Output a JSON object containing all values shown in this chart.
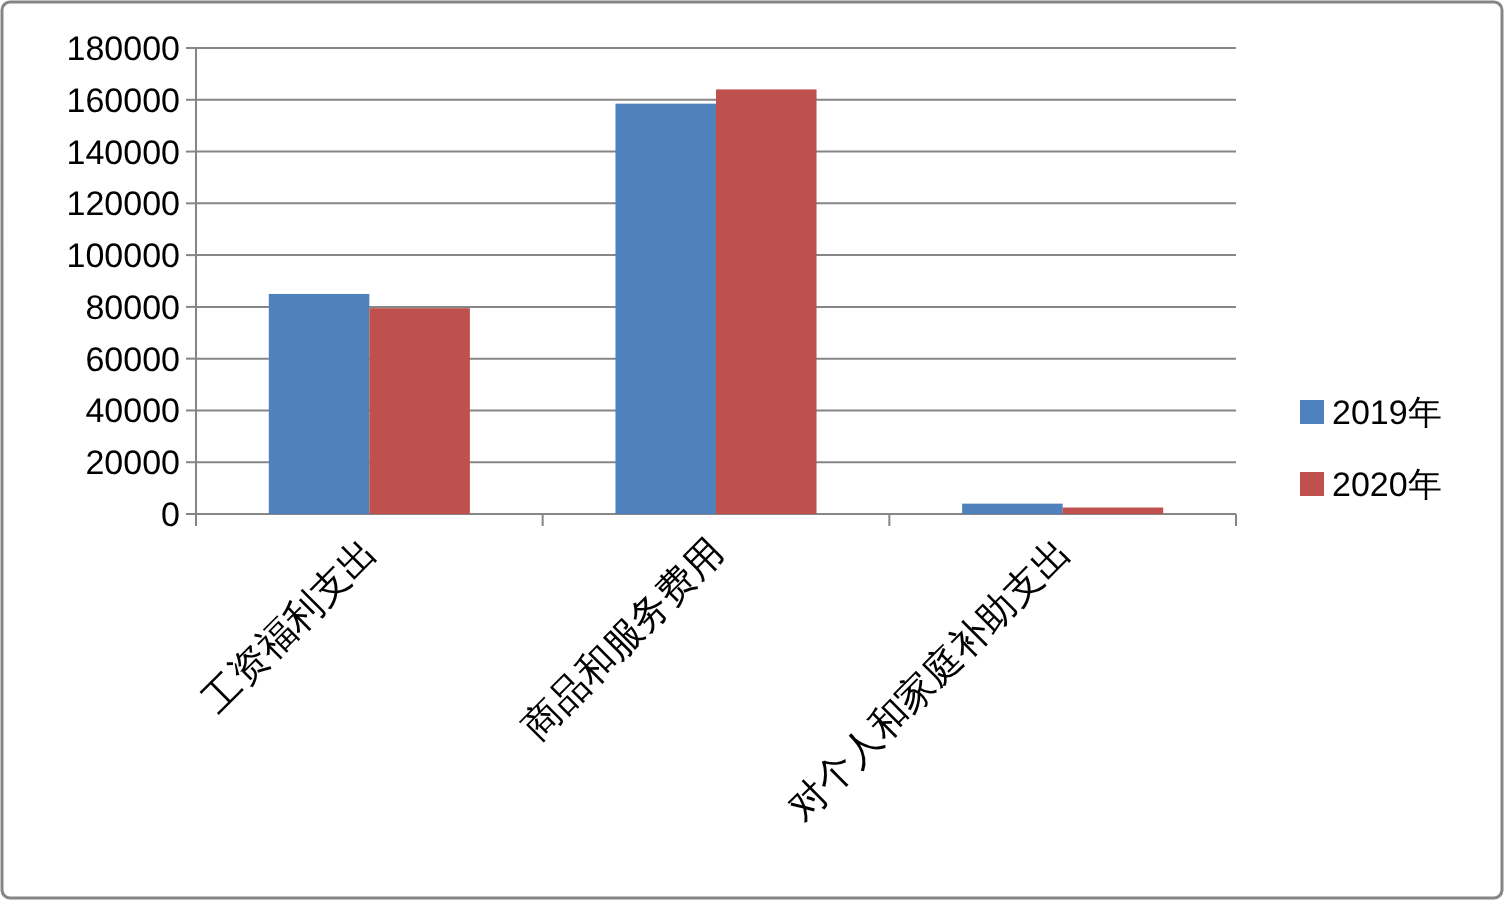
{
  "chart_data": {
    "type": "bar",
    "categories": [
      "工资福利支出",
      "商品和服务费用",
      "对个人和家庭补助支出"
    ],
    "series": [
      {
        "name": "2019年",
        "color": "#4f81bd",
        "values": [
          85000,
          158500,
          4000
        ]
      },
      {
        "name": "2020年",
        "color": "#c0504d",
        "values": [
          79500,
          164000,
          2500
        ]
      }
    ],
    "ylim": [
      0,
      180000
    ],
    "yticks": [
      0,
      20000,
      40000,
      60000,
      80000,
      100000,
      120000,
      140000,
      160000,
      180000
    ],
    "grid": "y",
    "legend": "right"
  }
}
